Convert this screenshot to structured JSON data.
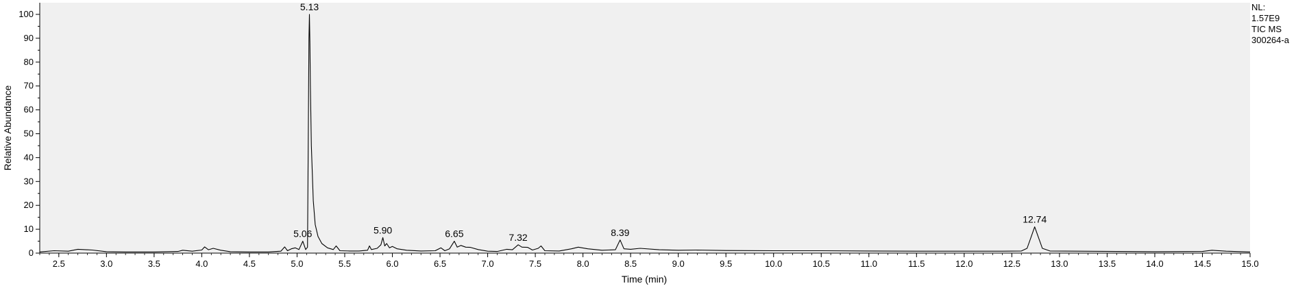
{
  "chart_data": {
    "type": "line",
    "title": "",
    "xlabel": "Time (min)",
    "ylabel": "Relative Abundance",
    "xlim": [
      2.3,
      15.0
    ],
    "ylim": [
      0,
      100
    ],
    "grid": false,
    "x_ticks": [
      "2.5",
      "3.0",
      "3.5",
      "4.0",
      "4.5",
      "5.0",
      "5.5",
      "6.0",
      "6.5",
      "7.0",
      "7.5",
      "8.0",
      "8.5",
      "9.0",
      "9.5",
      "10.0",
      "10.5",
      "11.0",
      "11.5",
      "12.0",
      "12.5",
      "13.0",
      "13.5",
      "14.0",
      "14.5",
      "15.0"
    ],
    "y_ticks": [
      "0",
      "10",
      "20",
      "30",
      "40",
      "50",
      "60",
      "70",
      "80",
      "90",
      "100"
    ],
    "info": [
      "NL:",
      "1.57E9",
      "TIC  MS",
      "300264-a"
    ],
    "peak_labels": [
      {
        "x": 5.06,
        "y": 5,
        "label": "5.06"
      },
      {
        "x": 5.13,
        "y": 100,
        "label": "5.13"
      },
      {
        "x": 5.9,
        "y": 6.5,
        "label": "5.90"
      },
      {
        "x": 6.65,
        "y": 5,
        "label": "6.65"
      },
      {
        "x": 7.32,
        "y": 3.5,
        "label": "7.32"
      },
      {
        "x": 8.39,
        "y": 5.5,
        "label": "8.39"
      },
      {
        "x": 12.74,
        "y": 11,
        "label": "12.74"
      }
    ],
    "baseline": [
      [
        2.3,
        0.5
      ],
      [
        2.45,
        1.0
      ],
      [
        2.6,
        0.8
      ],
      [
        2.7,
        1.6
      ],
      [
        2.85,
        1.3
      ],
      [
        3.0,
        0.6
      ],
      [
        3.2,
        0.5
      ],
      [
        3.5,
        0.5
      ],
      [
        3.75,
        0.7
      ],
      [
        3.8,
        1.2
      ],
      [
        3.9,
        0.8
      ],
      [
        4.0,
        1.3
      ],
      [
        4.03,
        2.6
      ],
      [
        4.07,
        1.4
      ],
      [
        4.12,
        2.0
      ],
      [
        4.2,
        1.2
      ],
      [
        4.3,
        0.6
      ],
      [
        4.5,
        0.5
      ],
      [
        4.7,
        0.5
      ],
      [
        4.83,
        0.8
      ],
      [
        4.87,
        2.6
      ],
      [
        4.9,
        1.0
      ],
      [
        4.94,
        1.8
      ],
      [
        4.98,
        2.2
      ],
      [
        5.02,
        1.5
      ],
      [
        5.06,
        5.0
      ],
      [
        5.09,
        1.5
      ],
      [
        5.11,
        2.5
      ],
      [
        5.125,
        90
      ],
      [
        5.13,
        100
      ],
      [
        5.135,
        88
      ],
      [
        5.14,
        70
      ],
      [
        5.15,
        45
      ],
      [
        5.17,
        22
      ],
      [
        5.19,
        12
      ],
      [
        5.22,
        7
      ],
      [
        5.26,
        4
      ],
      [
        5.32,
        2.2
      ],
      [
        5.38,
        1.5
      ],
      [
        5.41,
        3.0
      ],
      [
        5.45,
        1.0
      ],
      [
        5.55,
        0.9
      ],
      [
        5.65,
        0.9
      ],
      [
        5.74,
        1.2
      ],
      [
        5.76,
        3.0
      ],
      [
        5.78,
        1.5
      ],
      [
        5.84,
        2.0
      ],
      [
        5.88,
        3.5
      ],
      [
        5.9,
        6.5
      ],
      [
        5.92,
        3.0
      ],
      [
        5.94,
        4.0
      ],
      [
        5.97,
        2.2
      ],
      [
        6.0,
        2.8
      ],
      [
        6.05,
        1.8
      ],
      [
        6.15,
        1.2
      ],
      [
        6.3,
        0.9
      ],
      [
        6.45,
        1.0
      ],
      [
        6.51,
        2.2
      ],
      [
        6.55,
        1.0
      ],
      [
        6.6,
        1.8
      ],
      [
        6.65,
        5.0
      ],
      [
        6.68,
        2.5
      ],
      [
        6.72,
        3.2
      ],
      [
        6.77,
        2.5
      ],
      [
        6.82,
        2.4
      ],
      [
        6.9,
        1.5
      ],
      [
        7.0,
        0.8
      ],
      [
        7.1,
        0.7
      ],
      [
        7.2,
        1.6
      ],
      [
        7.26,
        1.4
      ],
      [
        7.32,
        3.5
      ],
      [
        7.36,
        2.5
      ],
      [
        7.42,
        2.4
      ],
      [
        7.47,
        1.3
      ],
      [
        7.53,
        2.0
      ],
      [
        7.56,
        3.0
      ],
      [
        7.6,
        1.0
      ],
      [
        7.75,
        0.9
      ],
      [
        7.88,
        1.8
      ],
      [
        7.95,
        2.5
      ],
      [
        8.05,
        1.8
      ],
      [
        8.2,
        1.2
      ],
      [
        8.34,
        1.4
      ],
      [
        8.39,
        5.5
      ],
      [
        8.43,
        1.8
      ],
      [
        8.5,
        1.6
      ],
      [
        8.6,
        2.0
      ],
      [
        8.8,
        1.4
      ],
      [
        9.0,
        1.2
      ],
      [
        9.2,
        1.3
      ],
      [
        9.5,
        1.1
      ],
      [
        10.0,
        1.0
      ],
      [
        10.5,
        1.0
      ],
      [
        11.0,
        0.9
      ],
      [
        11.5,
        0.8
      ],
      [
        12.0,
        0.8
      ],
      [
        12.4,
        0.8
      ],
      [
        12.6,
        0.9
      ],
      [
        12.66,
        2.0
      ],
      [
        12.7,
        6.5
      ],
      [
        12.74,
        11.0
      ],
      [
        12.78,
        6.5
      ],
      [
        12.82,
        2.0
      ],
      [
        12.9,
        0.9
      ],
      [
        13.2,
        0.8
      ],
      [
        13.6,
        0.7
      ],
      [
        14.0,
        0.6
      ],
      [
        14.5,
        0.7
      ],
      [
        14.6,
        1.2
      ],
      [
        14.75,
        0.8
      ],
      [
        15.0,
        0.5
      ]
    ]
  }
}
